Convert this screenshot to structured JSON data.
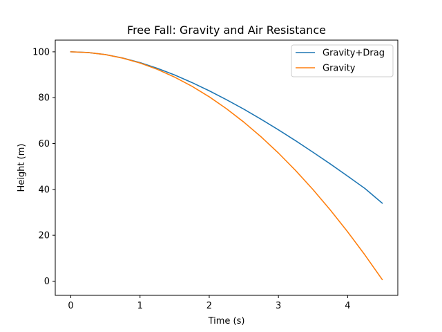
{
  "chart_data": {
    "type": "line",
    "title": "Free Fall: Gravity and Air Resistance",
    "xlabel": "Time (s)",
    "ylabel": "Height (m)",
    "xlim": [
      -0.225,
      4.725
    ],
    "ylim": [
      -6.2,
      105.1
    ],
    "xticks": [
      0,
      1,
      2,
      3,
      4
    ],
    "yticks": [
      0,
      20,
      40,
      60,
      80,
      100
    ],
    "grid": false,
    "legend_position": "top-right",
    "series": [
      {
        "name": "Gravity+Drag",
        "color": "#1f77b4",
        "x": [
          0,
          0.25,
          0.5,
          0.75,
          1.0,
          1.25,
          1.5,
          1.75,
          2.0,
          2.25,
          2.5,
          2.75,
          3.0,
          3.25,
          3.5,
          3.75,
          4.0,
          4.25,
          4.5
        ],
        "y": [
          100,
          99.7,
          98.8,
          97.3,
          95.3,
          92.8,
          89.9,
          86.6,
          83.0,
          79.1,
          75.0,
          70.6,
          66.0,
          61.2,
          56.2,
          51.1,
          45.8,
          40.4,
          34.0
        ]
      },
      {
        "name": "Gravity",
        "color": "#ff7f0e",
        "x": [
          0,
          0.25,
          0.5,
          0.75,
          1.0,
          1.25,
          1.5,
          1.75,
          2.0,
          2.25,
          2.5,
          2.75,
          3.0,
          3.25,
          3.5,
          3.75,
          4.0,
          4.25,
          4.5
        ],
        "y": [
          100,
          99.69,
          98.78,
          97.24,
          95.1,
          92.34,
          88.96,
          84.98,
          80.38,
          75.17,
          69.34,
          62.91,
          55.86,
          48.19,
          39.91,
          31.02,
          21.52,
          11.4,
          0.68
        ]
      }
    ]
  }
}
